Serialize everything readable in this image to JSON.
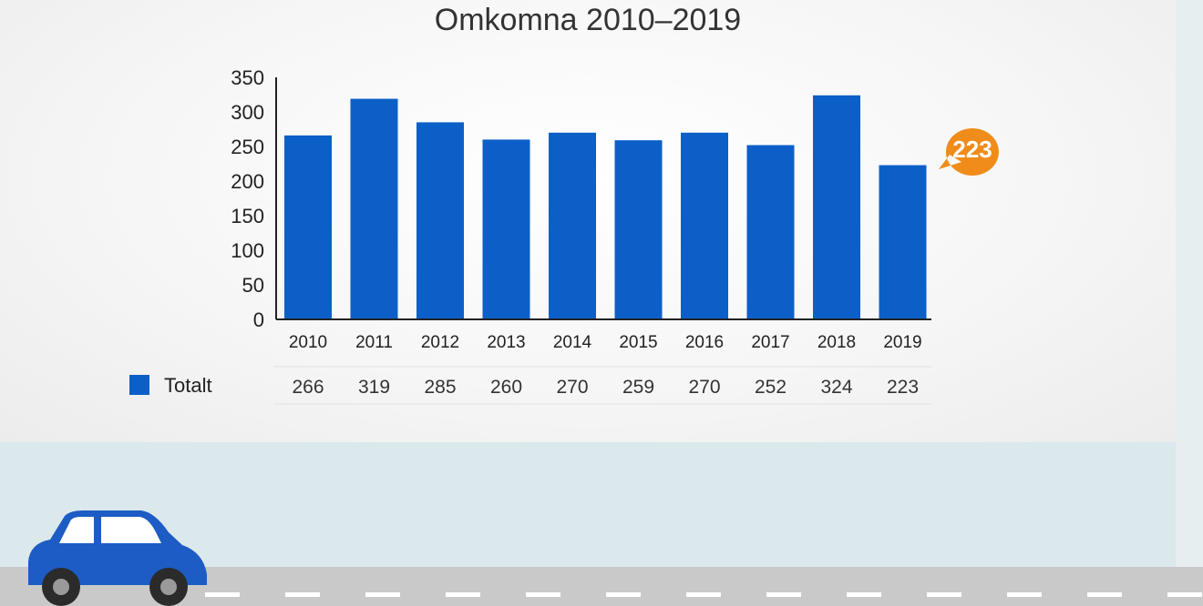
{
  "chart_data": {
    "type": "bar",
    "title": "Omkomna 2010–2019",
    "categories": [
      "2010",
      "2011",
      "2012",
      "2013",
      "2014",
      "2015",
      "2016",
      "2017",
      "2018",
      "2019"
    ],
    "series": [
      {
        "name": "Totalt",
        "values": [
          266,
          319,
          285,
          260,
          270,
          259,
          270,
          252,
          324,
          223
        ],
        "color": "#0d5fc8"
      }
    ],
    "table_values": [
      "266",
      "319",
      "285",
      "260",
      "270",
      "259",
      "270",
      "252",
      "324",
      "223"
    ],
    "ylim": [
      0,
      350
    ],
    "yticks": [
      0,
      50,
      100,
      150,
      200,
      250,
      300,
      350
    ],
    "callout": {
      "label": "223",
      "color": "#f08c1a"
    },
    "grid": false,
    "legend": "table-row-left"
  },
  "colors": {
    "car": "#1d5cc4",
    "road": "#c9c9c9",
    "background": "#dbe8ec"
  }
}
